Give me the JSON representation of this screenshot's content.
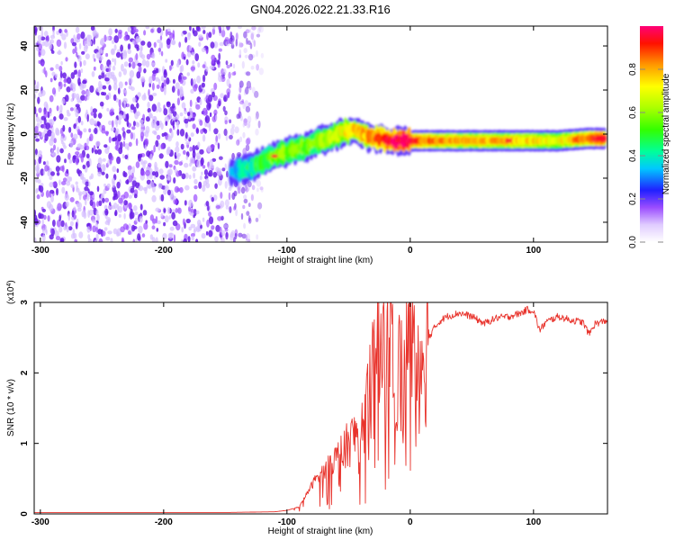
{
  "title": "GN04.2026.022.21.33.R16",
  "colors": {
    "background": "#ffffff",
    "frame": "#000000",
    "snr_line": "#e8332c",
    "colormap": [
      "#ffffff",
      "#e6d7ff",
      "#8a2be2",
      "#6a00ff",
      "#0000ff",
      "#00ffff",
      "#00ff66",
      "#80ff00",
      "#ffff00",
      "#ff8800",
      "#ff0000",
      "#ff0066"
    ]
  },
  "chart_data": [
    {
      "type": "heatmap",
      "name": "spectrogram",
      "title": "GN04.2026.022.21.33.R16",
      "xlabel": "Height of straight line (km)",
      "ylabel": "Frequency (Hz)",
      "xlim": [
        -305,
        160
      ],
      "ylim": [
        -49,
        49
      ],
      "xticks": [
        -300,
        -200,
        -100,
        0,
        100
      ],
      "yticks": [
        -40,
        -20,
        0,
        20,
        40
      ],
      "noise_region_x": [
        -305,
        -120
      ],
      "ridge": {
        "x": [
          -145,
          -135,
          -125,
          -115,
          -105,
          -95,
          -85,
          -75,
          -65,
          -55,
          -45,
          -35,
          -25,
          -15,
          -5,
          10,
          40,
          80,
          120,
          145,
          158
        ],
        "freq": [
          -17,
          -16,
          -14,
          -11,
          -9,
          -7,
          -6,
          -3,
          -2,
          1,
          2,
          -1,
          -2,
          -3,
          -3,
          -3,
          -3,
          -3,
          -3,
          -2,
          -2
        ],
        "amplitude": [
          0.3,
          0.4,
          0.45,
          0.5,
          0.55,
          0.55,
          0.5,
          0.55,
          0.6,
          0.65,
          0.7,
          0.75,
          0.85,
          0.9,
          0.95,
          0.8,
          0.75,
          0.75,
          0.65,
          0.85,
          0.9
        ]
      },
      "colorbar": {
        "label": "Normalized spectral amplitude",
        "range": [
          0,
          1
        ],
        "ticks": [
          "0.0",
          "0.2",
          "0.4",
          "0.6",
          "0.8"
        ]
      }
    },
    {
      "type": "line",
      "name": "snr",
      "xlabel": "Height of straight line (km)",
      "ylabel": "SNR (10 * v/v)",
      "multiplier": "(x10",
      "multiplier_exp": "4",
      "multiplier_close": ")",
      "xlim": [
        -305,
        160
      ],
      "ylim": [
        0,
        3
      ],
      "xticks": [
        -300,
        -200,
        -100,
        0,
        100
      ],
      "yticks": [
        0,
        1,
        2,
        3
      ],
      "series": [
        {
          "name": "SNR",
          "x": [
            -305,
            -250,
            -200,
            -150,
            -110,
            -100,
            -90,
            -85,
            -80,
            -75,
            -70,
            -65,
            -60,
            -55,
            -50,
            -45,
            -40,
            -35,
            -30,
            -25,
            -22,
            -20,
            -18,
            -15,
            -10,
            -5,
            -2,
            0,
            5,
            10,
            15,
            20,
            25,
            30,
            40,
            50,
            55,
            60,
            70,
            80,
            90,
            95,
            100,
            105,
            110,
            120,
            130,
            140,
            145,
            150,
            155,
            160
          ],
          "y": [
            0.02,
            0.02,
            0.02,
            0.02,
            0.03,
            0.05,
            0.1,
            0.25,
            0.4,
            0.55,
            0.6,
            0.7,
            0.8,
            0.9,
            1.0,
            1.1,
            1.3,
            1.6,
            1.9,
            2.2,
            2.9,
            3.0,
            2.5,
            2.6,
            2.0,
            2.0,
            2.2,
            3.0,
            2.1,
            2.3,
            2.5,
            2.65,
            2.75,
            2.8,
            2.85,
            2.8,
            2.75,
            2.7,
            2.78,
            2.8,
            2.85,
            2.9,
            2.88,
            2.6,
            2.72,
            2.8,
            2.75,
            2.72,
            2.55,
            2.7,
            2.72,
            2.75
          ]
        }
      ]
    }
  ]
}
